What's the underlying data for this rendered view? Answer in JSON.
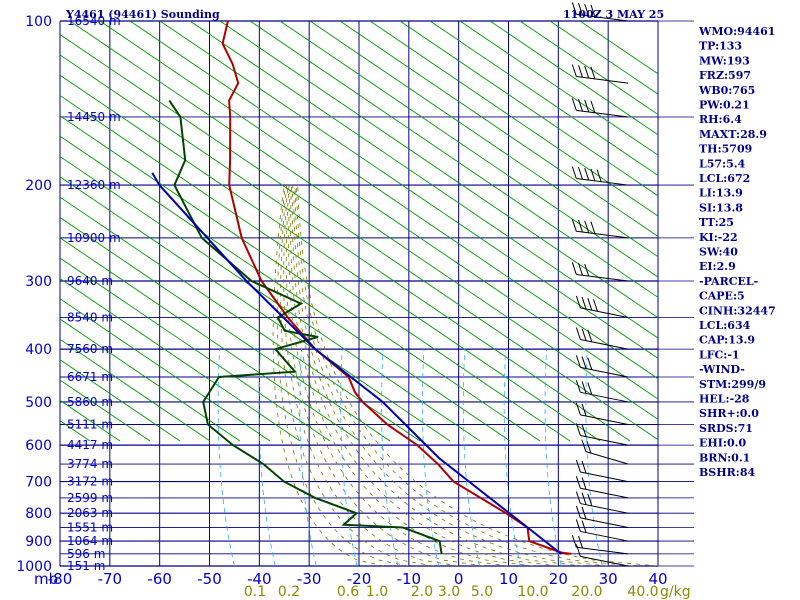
{
  "header": {
    "station": "Y4461 (94461) Sounding",
    "time": "1100Z  3 MAY 25"
  },
  "colors": {
    "grid": "#00008b",
    "dry_adiabat": "#009900",
    "moist_adiabat": "#7a7a00",
    "mixing_ratio": "#33aaff",
    "temperature": "#b00000",
    "dewpoint": "#004400",
    "parcel": "#0000b0",
    "wind": "#000000"
  },
  "chart_data": {
    "type": "line",
    "title": "Y4461 (94461) Sounding",
    "xlabel": "",
    "ylabel": "mb",
    "xlim": [
      -80,
      40
    ],
    "ylim": [
      1000,
      100
    ],
    "y_scale": "log",
    "skew": true,
    "pressure_ticks": [
      "100",
      "200",
      "300",
      "400",
      "500",
      "600",
      "700",
      "800",
      "900",
      "1000"
    ],
    "pressure_values": [
      100,
      200,
      300,
      400,
      500,
      600,
      700,
      800,
      900,
      1000
    ],
    "temp_ticks": [
      "-80",
      "-70",
      "-60",
      "-50",
      "-40",
      "-30",
      "-20",
      "-10",
      "0",
      "10",
      "20",
      "30",
      "40"
    ],
    "temp_values": [
      -80,
      -70,
      -60,
      -50,
      -40,
      -30,
      -20,
      -10,
      0,
      10,
      20,
      30,
      40
    ],
    "y_axis_unit": "mb",
    "height_labels": [
      {
        "p": 100,
        "text": "16540 m"
      },
      {
        "p": 150,
        "text": "14450 m"
      },
      {
        "p": 200,
        "text": "12360 m"
      },
      {
        "p": 250,
        "text": "10900 m"
      },
      {
        "p": 300,
        "text": "9640 m"
      },
      {
        "p": 350,
        "text": "8540 m"
      },
      {
        "p": 400,
        "text": "7560 m"
      },
      {
        "p": 450,
        "text": "6671 m"
      },
      {
        "p": 500,
        "text": "5860 m"
      },
      {
        "p": 550,
        "text": "5111 m"
      },
      {
        "p": 600,
        "text": "4417 m"
      },
      {
        "p": 650,
        "text": "3774 m"
      },
      {
        "p": 700,
        "text": "3172 m"
      },
      {
        "p": 750,
        "text": "2599 m"
      },
      {
        "p": 800,
        "text": "2063 m"
      },
      {
        "p": 850,
        "text": "1551 m"
      },
      {
        "p": 900,
        "text": "1064 m"
      },
      {
        "p": 950,
        "text": "596 m"
      },
      {
        "p": 1000,
        "text": "151 m"
      }
    ],
    "mixing_ratio_labels": [
      "0.1",
      "0.2",
      "0.6",
      "1.0",
      "2.0",
      "3.0",
      "5.0",
      "10.0",
      "20.0",
      "40.0"
    ],
    "mixing_ratio_values": [
      0.1,
      0.2,
      0.6,
      1.0,
      2.0,
      3.0,
      5.0,
      10.0,
      20.0,
      40.0
    ],
    "mixing_ratio_unit": "g/kg",
    "series": [
      {
        "key": "temperature",
        "points": [
          [
            950,
            22
          ],
          [
            945,
            20
          ],
          [
            900,
            13
          ],
          [
            850,
            12
          ],
          [
            800,
            7
          ],
          [
            700,
            -5
          ],
          [
            650,
            -9
          ],
          [
            600,
            -14
          ],
          [
            550,
            -21
          ],
          [
            500,
            -27
          ],
          [
            480,
            -29
          ],
          [
            450,
            -31
          ],
          [
            400,
            -39
          ],
          [
            350,
            -46
          ],
          [
            300,
            -53
          ],
          [
            250,
            -59
          ],
          [
            200,
            -64
          ],
          [
            180,
            -65
          ],
          [
            150,
            -67
          ],
          [
            140,
            -68
          ],
          [
            130,
            -67
          ],
          [
            120,
            -69
          ],
          [
            110,
            -72
          ],
          [
            100,
            -72
          ]
        ]
      },
      {
        "key": "dewpoint",
        "points": [
          [
            950,
            -4
          ],
          [
            900,
            -5
          ],
          [
            850,
            -13
          ],
          [
            840,
            -25
          ],
          [
            800,
            -23
          ],
          [
            750,
            -32
          ],
          [
            700,
            -39
          ],
          [
            650,
            -44
          ],
          [
            600,
            -51
          ],
          [
            550,
            -57
          ],
          [
            500,
            -59
          ],
          [
            450,
            -57
          ],
          [
            440,
            -42
          ],
          [
            400,
            -47
          ],
          [
            380,
            -39
          ],
          [
            370,
            -46
          ],
          [
            350,
            -48
          ],
          [
            330,
            -44
          ],
          [
            300,
            -55
          ],
          [
            250,
            -67
          ],
          [
            200,
            -75
          ],
          [
            180,
            -74
          ],
          [
            150,
            -77
          ],
          [
            140,
            -80
          ]
        ]
      },
      {
        "key": "parcel",
        "points": [
          [
            950,
            20
          ],
          [
            634,
            -9
          ],
          [
            500,
            -23
          ],
          [
            400,
            -39
          ],
          [
            300,
            -56
          ],
          [
            200,
            -78
          ],
          [
            190,
            -80
          ]
        ]
      }
    ],
    "wind_barbs": [
      {
        "p": 1000,
        "dir": 300,
        "spd": 10
      },
      {
        "p": 950,
        "dir": 290,
        "spd": 15
      },
      {
        "p": 900,
        "dir": 300,
        "spd": 20
      },
      {
        "p": 850,
        "dir": 300,
        "spd": 15
      },
      {
        "p": 800,
        "dir": 300,
        "spd": 25
      },
      {
        "p": 750,
        "dir": 300,
        "spd": 20
      },
      {
        "p": 700,
        "dir": 300,
        "spd": 15
      },
      {
        "p": 650,
        "dir": 310,
        "spd": 15
      },
      {
        "p": 600,
        "dir": 300,
        "spd": 20
      },
      {
        "p": 550,
        "dir": 300,
        "spd": 20
      },
      {
        "p": 500,
        "dir": 300,
        "spd": 25
      },
      {
        "p": 450,
        "dir": 300,
        "spd": 25
      },
      {
        "p": 400,
        "dir": 300,
        "spd": 30
      },
      {
        "p": 350,
        "dir": 300,
        "spd": 35
      },
      {
        "p": 300,
        "dir": 290,
        "spd": 30
      },
      {
        "p": 250,
        "dir": 290,
        "spd": 35
      },
      {
        "p": 200,
        "dir": 290,
        "spd": 45
      },
      {
        "p": 150,
        "dir": 290,
        "spd": 40
      },
      {
        "p": 130,
        "dir": 290,
        "spd": 35
      },
      {
        "p": 100,
        "dir": 290,
        "spd": 40
      }
    ]
  },
  "indices": [
    "WMO:94461",
    "TP:133",
    "MW:193",
    "FRZ:597",
    "WB0:765",
    "PW:0.21",
    "RH:6.4",
    "MAXT:28.9",
    "TH:5709",
    "L57:5.4",
    "LCL:672",
    "LI:13.9",
    "SI:13.8",
    "TT:25",
    "KI:-22",
    "SW:40",
    "EI:2.9",
    "-PARCEL-",
    "CAPE:5",
    "CINH:32447",
    "LCL:634",
    "CAP:13.9",
    "LFC:-1",
    "-WIND-",
    "STM:299/9",
    "HEL:-28",
    "SHR+:0.0",
    "SRDS:71",
    "EHI:0.0",
    "BRN:0.1",
    "BSHR:84"
  ]
}
